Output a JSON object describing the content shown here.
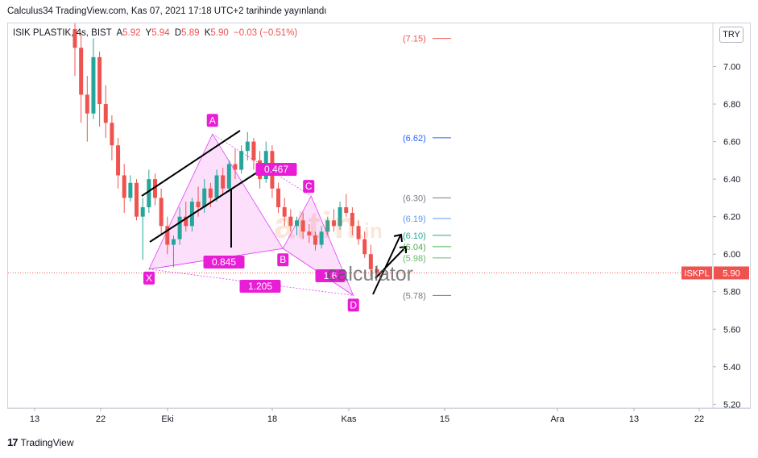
{
  "header": {
    "published": "Calculus34 TradingView.com, Kas 07, 2021 17:18 UTC+2 tarihinde yayınlandı"
  },
  "legend": {
    "symbol": "ISIK PLASTIK, 4s, BIST",
    "open_label": "A",
    "open": "5.92",
    "high_label": "Y",
    "high": "5.94",
    "low_label": "D",
    "low": "5.89",
    "close_label": "K",
    "close": "5.90",
    "change": "−0.03 (−0.51%)",
    "colors": {
      "down": "#ef5350",
      "up": "#26a69a"
    }
  },
  "currency": "TRY",
  "footer": {
    "brand": "TradingView",
    "logo_text": "17"
  },
  "watermark": {
    "brand": "altin",
    "suffix": ".in",
    "sub": "calculator"
  },
  "chart_data": {
    "type": "candlestick",
    "y_axis": {
      "ticks": [
        "7.00",
        "6.80",
        "6.60",
        "6.40",
        "6.20",
        "6.00",
        "5.80",
        "5.60",
        "5.40",
        "5.20"
      ],
      "range": [
        5.18,
        7.23
      ]
    },
    "x_axis": {
      "ticks": [
        "13",
        "22",
        "Eki",
        "18",
        "Kas",
        "15",
        "Ara",
        "13",
        "22"
      ]
    },
    "last_price": {
      "symbol": "ISKPL",
      "value": "5.90",
      "color": "#ef5350"
    },
    "candles": [
      {
        "o": 7.2,
        "h": 7.23,
        "l": 6.95,
        "c": 7.1
      },
      {
        "o": 7.1,
        "h": 7.18,
        "l": 6.7,
        "c": 6.85
      },
      {
        "o": 6.85,
        "h": 6.95,
        "l": 6.6,
        "c": 6.75
      },
      {
        "o": 6.75,
        "h": 7.15,
        "l": 6.72,
        "c": 7.05
      },
      {
        "o": 7.05,
        "h": 7.08,
        "l": 6.68,
        "c": 6.8
      },
      {
        "o": 6.8,
        "h": 6.9,
        "l": 6.62,
        "c": 6.7
      },
      {
        "o": 6.7,
        "h": 6.74,
        "l": 6.5,
        "c": 6.58
      },
      {
        "o": 6.58,
        "h": 6.62,
        "l": 6.35,
        "c": 6.42
      },
      {
        "o": 6.42,
        "h": 6.48,
        "l": 6.22,
        "c": 6.3
      },
      {
        "o": 6.3,
        "h": 6.42,
        "l": 6.28,
        "c": 6.38
      },
      {
        "o": 6.38,
        "h": 6.4,
        "l": 6.18,
        "c": 6.2
      },
      {
        "o": 6.2,
        "h": 6.3,
        "l": 5.97,
        "c": 6.25
      },
      {
        "o": 6.25,
        "h": 6.45,
        "l": 6.22,
        "c": 6.4
      },
      {
        "o": 6.4,
        "h": 6.43,
        "l": 6.26,
        "c": 6.3
      },
      {
        "o": 6.3,
        "h": 6.35,
        "l": 6.1,
        "c": 6.15
      },
      {
        "o": 6.15,
        "h": 6.2,
        "l": 6.0,
        "c": 6.05
      },
      {
        "o": 6.05,
        "h": 6.1,
        "l": 5.93,
        "c": 6.08
      },
      {
        "o": 6.08,
        "h": 6.25,
        "l": 6.05,
        "c": 6.2
      },
      {
        "o": 6.2,
        "h": 6.28,
        "l": 6.12,
        "c": 6.15
      },
      {
        "o": 6.15,
        "h": 6.3,
        "l": 6.12,
        "c": 6.28
      },
      {
        "o": 6.28,
        "h": 6.36,
        "l": 6.2,
        "c": 6.25
      },
      {
        "o": 6.25,
        "h": 6.4,
        "l": 6.22,
        "c": 6.35
      },
      {
        "o": 6.35,
        "h": 6.38,
        "l": 6.25,
        "c": 6.3
      },
      {
        "o": 6.3,
        "h": 6.45,
        "l": 6.28,
        "c": 6.42
      },
      {
        "o": 6.42,
        "h": 6.46,
        "l": 6.32,
        "c": 6.35
      },
      {
        "o": 6.35,
        "h": 6.5,
        "l": 6.33,
        "c": 6.48
      },
      {
        "o": 6.48,
        "h": 6.56,
        "l": 6.4,
        "c": 6.45
      },
      {
        "o": 6.45,
        "h": 6.58,
        "l": 6.43,
        "c": 6.55
      },
      {
        "o": 6.55,
        "h": 6.65,
        "l": 6.5,
        "c": 6.6
      },
      {
        "o": 6.6,
        "h": 6.62,
        "l": 6.45,
        "c": 6.5
      },
      {
        "o": 6.5,
        "h": 6.55,
        "l": 6.35,
        "c": 6.4
      },
      {
        "o": 6.4,
        "h": 6.6,
        "l": 6.38,
        "c": 6.55
      },
      {
        "o": 6.55,
        "h": 6.58,
        "l": 6.3,
        "c": 6.35
      },
      {
        "o": 6.35,
        "h": 6.38,
        "l": 6.22,
        "c": 6.25
      },
      {
        "o": 6.25,
        "h": 6.3,
        "l": 6.15,
        "c": 6.2
      },
      {
        "o": 6.2,
        "h": 6.24,
        "l": 6.12,
        "c": 6.15
      },
      {
        "o": 6.15,
        "h": 6.2,
        "l": 6.1,
        "c": 6.18
      },
      {
        "o": 6.18,
        "h": 6.22,
        "l": 6.08,
        "c": 6.12
      },
      {
        "o": 6.12,
        "h": 6.16,
        "l": 6.06,
        "c": 6.1
      },
      {
        "o": 6.1,
        "h": 6.12,
        "l": 6.02,
        "c": 6.05
      },
      {
        "o": 6.05,
        "h": 6.15,
        "l": 6.03,
        "c": 6.12
      },
      {
        "o": 6.12,
        "h": 6.2,
        "l": 6.1,
        "c": 6.18
      },
      {
        "o": 6.18,
        "h": 6.24,
        "l": 6.12,
        "c": 6.15
      },
      {
        "o": 6.15,
        "h": 6.28,
        "l": 6.13,
        "c": 6.25
      },
      {
        "o": 6.25,
        "h": 6.32,
        "l": 6.2,
        "c": 6.22
      },
      {
        "o": 6.22,
        "h": 6.25,
        "l": 6.1,
        "c": 6.15
      },
      {
        "o": 6.15,
        "h": 6.18,
        "l": 6.05,
        "c": 6.08
      },
      {
        "o": 6.08,
        "h": 6.12,
        "l": 5.98,
        "c": 6.0
      },
      {
        "o": 6.0,
        "h": 6.05,
        "l": 5.88,
        "c": 5.92
      },
      {
        "o": 5.92,
        "h": 5.94,
        "l": 5.89,
        "c": 5.9
      }
    ],
    "harmonic_pattern": {
      "points": [
        {
          "label": "X",
          "x": 0.2,
          "y": 5.92
        },
        {
          "label": "A",
          "x": 0.29,
          "y": 6.64
        },
        {
          "label": "B",
          "x": 0.39,
          "y": 6.03
        },
        {
          "label": "C",
          "x": 0.43,
          "y": 6.31
        },
        {
          "label": "D",
          "x": 0.49,
          "y": 5.78
        }
      ],
      "ratios": [
        {
          "text": "0.467"
        },
        {
          "text": "0.845"
        },
        {
          "text": "1.205"
        },
        {
          "text": "1.6"
        }
      ]
    },
    "levels": [
      {
        "text": "(7.15)",
        "value": 7.15,
        "color": "#ef5350"
      },
      {
        "text": "(6.62)",
        "value": 6.62,
        "color": "#2962ff"
      },
      {
        "text": "(6.30)",
        "value": 6.3,
        "color": "#787b86"
      },
      {
        "text": "(6.19)",
        "value": 6.19,
        "color": "#5b9cf6"
      },
      {
        "text": "(6.10)",
        "value": 6.1,
        "color": "#26a69a"
      },
      {
        "text": "(6.04)",
        "value": 6.04,
        "color": "#4caf50"
      },
      {
        "text": "(5.98)",
        "value": 5.98,
        "color": "#66bb6a"
      },
      {
        "text": "(5.78)",
        "value": 5.78,
        "color": "#787b86"
      }
    ]
  }
}
